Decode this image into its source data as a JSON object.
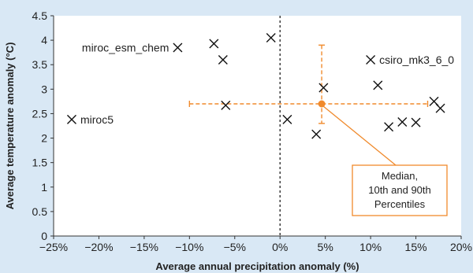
{
  "chart_data": {
    "type": "scatter",
    "xlabel": "Average annual precipitation anomaly (%)",
    "ylabel": "Average temperature anomaly (°C)",
    "xlim": [
      -25,
      20
    ],
    "ylim": [
      0,
      4.5
    ],
    "x_ticks": [
      -25,
      -20,
      -15,
      -10,
      -5,
      0,
      5,
      10,
      15,
      20
    ],
    "x_tick_labels": [
      "−25%",
      "−20%",
      "−15%",
      "−10%",
      "−5%",
      "0%",
      "5%",
      "10%",
      "15%",
      "20%"
    ],
    "y_ticks": [
      0,
      0.5,
      1,
      1.5,
      2,
      2.5,
      3,
      3.5,
      4,
      4.5
    ],
    "y_tick_labels": [
      "0",
      "0.5",
      "1",
      "1.5",
      "2",
      "2.5",
      "3",
      "3.5",
      "4",
      "4.5"
    ],
    "grid": false,
    "reference_line_x": 0,
    "points": [
      {
        "x": -23,
        "y": 2.38,
        "label": "miroc5"
      },
      {
        "x": -11.3,
        "y": 3.85,
        "label": "miroc_esm_chem"
      },
      {
        "x": -7.3,
        "y": 3.93
      },
      {
        "x": -6.3,
        "y": 3.6
      },
      {
        "x": -6.0,
        "y": 2.67
      },
      {
        "x": -1.0,
        "y": 4.05
      },
      {
        "x": 0.8,
        "y": 2.38
      },
      {
        "x": 4.0,
        "y": 2.08
      },
      {
        "x": 4.8,
        "y": 3.03
      },
      {
        "x": 10.0,
        "y": 3.6,
        "label": "csiro_mk3_6_0"
      },
      {
        "x": 10.8,
        "y": 3.08
      },
      {
        "x": 12.0,
        "y": 2.23
      },
      {
        "x": 13.5,
        "y": 2.33
      },
      {
        "x": 15.0,
        "y": 2.32
      },
      {
        "x": 17.0,
        "y": 2.75
      },
      {
        "x": 17.7,
        "y": 2.61
      }
    ],
    "median": {
      "x": 4.6,
      "y": 2.7,
      "x_p10": -10.0,
      "x_p90": 16.3,
      "y_p10": 2.3,
      "y_p90": 3.9
    },
    "annotation": {
      "lines": [
        "Median,",
        "10th and 90th",
        "Percentiles"
      ]
    },
    "colors": {
      "background": "#d9e8f5",
      "plot_area": "#ffffff",
      "median": "#f08a2c",
      "annotation_border": "#f08a2c",
      "marker": "#111111",
      "axis": "#333333"
    }
  }
}
